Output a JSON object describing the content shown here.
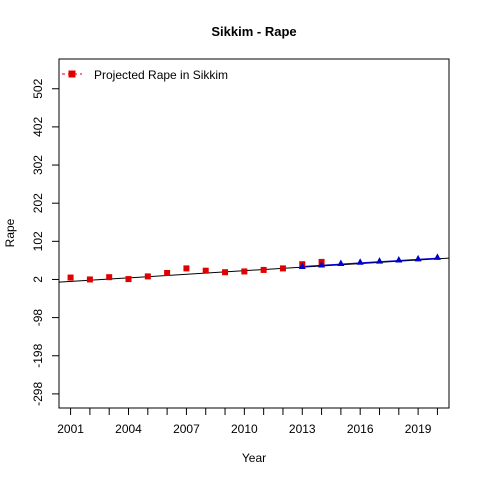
{
  "chart_data": {
    "type": "scatter",
    "title": "Sikkim  -  Rape",
    "xlabel": "Year",
    "ylabel": "Rape",
    "xlim": [
      2000.4,
      2020.6
    ],
    "ylim": [
      -335,
      580
    ],
    "x_ticks": [
      2001,
      2002,
      2003,
      2004,
      2005,
      2006,
      2007,
      2008,
      2009,
      2010,
      2011,
      2012,
      2013,
      2014,
      2015,
      2016,
      2017,
      2018,
      2019,
      2020
    ],
    "x_tick_labels": [
      "2001",
      "2004",
      "2007",
      "2010",
      "2013",
      "2016",
      "2019"
    ],
    "x_tick_label_values": [
      2001,
      2004,
      2007,
      2010,
      2013,
      2016,
      2019
    ],
    "y_ticks": [
      -298,
      -198,
      -98,
      2,
      102,
      202,
      302,
      402,
      502
    ],
    "y_tick_labels": [
      "-298",
      "-198",
      "-98",
      "2",
      "102",
      "202",
      "302",
      "402",
      "502"
    ],
    "legend": {
      "label": "Projected Rape in Sikkim",
      "placement": "top-left"
    },
    "grid": false,
    "series": [
      {
        "name": "Projected Rape in Sikkim",
        "marker": "square",
        "color": "#e00000",
        "x": [
          2001,
          2002,
          2003,
          2004,
          2005,
          2006,
          2007,
          2008,
          2009,
          2010,
          2011,
          2012,
          2013,
          2014
        ],
        "y": [
          7,
          2,
          8,
          3,
          10,
          19,
          31,
          25,
          21,
          23,
          27,
          31,
          42,
          48
        ]
      },
      {
        "name": "",
        "marker": "triangle",
        "color": "#0000cc",
        "x": [
          2013,
          2014,
          2015,
          2016,
          2017,
          2018,
          2019,
          2020
        ],
        "y": [
          36,
          40,
          44,
          47,
          50,
          53,
          56,
          60
        ]
      }
    ],
    "trend_line": {
      "color": "#000000",
      "x": [
        2000.4,
        2020.6
      ],
      "y": [
        -5,
        58
      ]
    },
    "trend_line_blue": {
      "color": "#0000cc",
      "x": [
        2013,
        2020
      ],
      "y": [
        36,
        58
      ]
    }
  }
}
